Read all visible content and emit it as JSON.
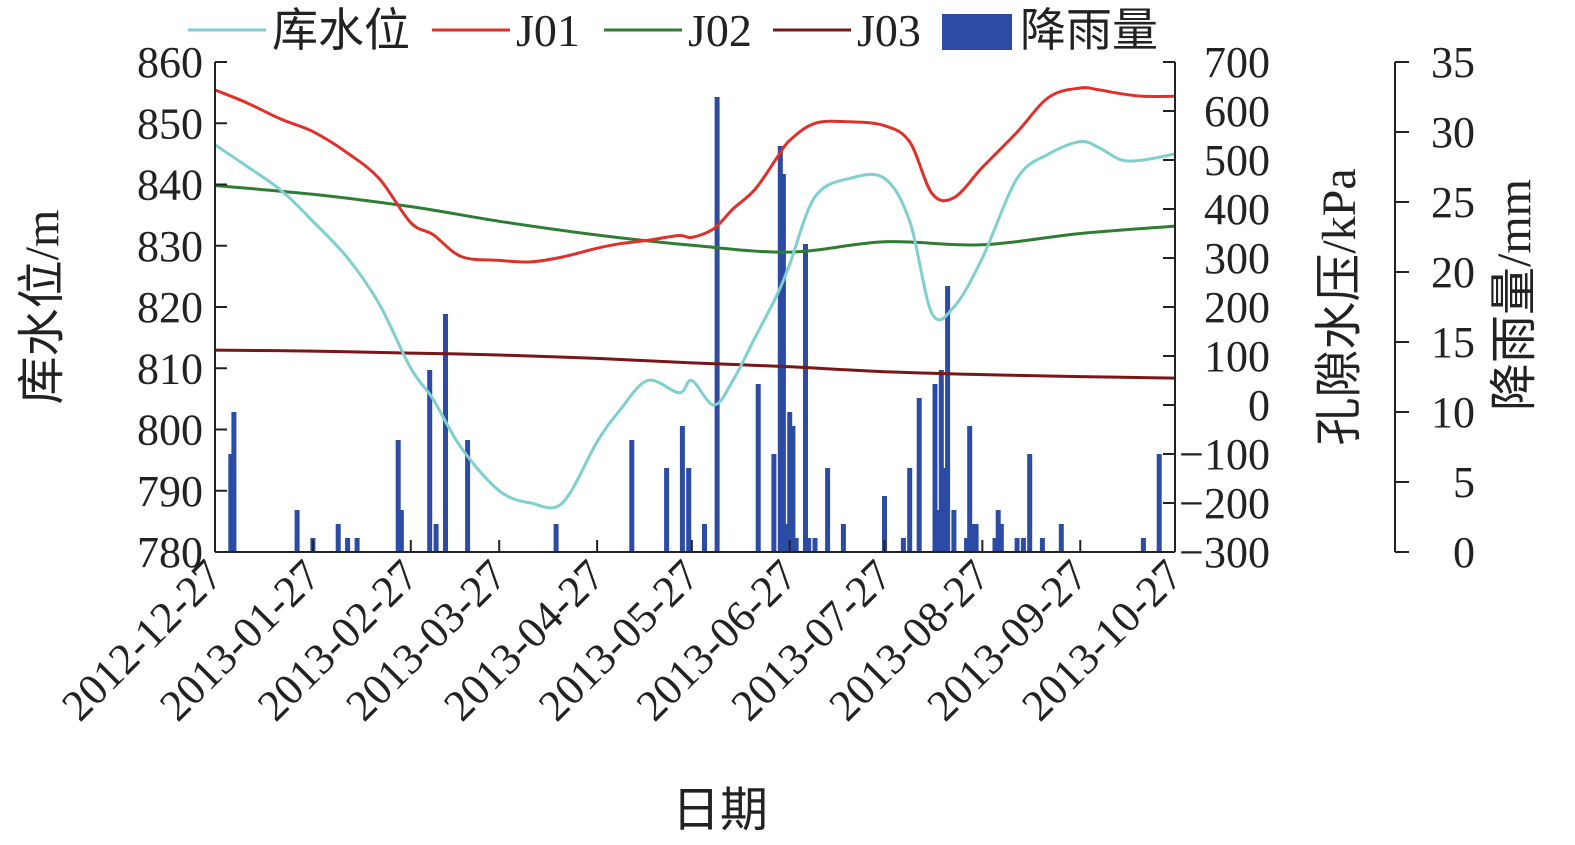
{
  "chart_data": {
    "type": "line",
    "title": "",
    "xlabel": "日期",
    "x_tick_labels": [
      "2012-12-27",
      "2013-01-27",
      "2013-02-27",
      "2013-03-27",
      "2013-04-27",
      "2013-05-27",
      "2013-06-27",
      "2013-07-27",
      "2013-08-27",
      "2013-09-27",
      "2013-10-27"
    ],
    "x_range": [
      "2012-12-27",
      "2013-10-27"
    ],
    "axes": {
      "left": {
        "label": "库水位/m",
        "ylim": [
          780,
          860
        ],
        "ticks": [
          "860",
          "850",
          "840",
          "830",
          "820",
          "810",
          "800",
          "790",
          "780"
        ]
      },
      "right1": {
        "label": "孔隙水压/kPa",
        "ylim": [
          -300,
          700
        ],
        "ticks": [
          "700",
          "600",
          "500",
          "400",
          "300",
          "200",
          "100",
          "0",
          "−100",
          "−200",
          "−300"
        ]
      },
      "right2": {
        "label": "降雨量/mm",
        "ylim": [
          0,
          35
        ],
        "ticks": [
          "35",
          "30",
          "25",
          "20",
          "15",
          "10",
          "5",
          "0"
        ]
      }
    },
    "legend_position": "top",
    "grid": false,
    "series": [
      {
        "name": "库水位",
        "kind": "line",
        "axis": "left",
        "color": "#7fcfcf",
        "x": [
          "2012-12-27",
          "2013-01-06",
          "2013-01-17",
          "2013-01-27",
          "2013-02-07",
          "2013-02-17",
          "2013-02-27",
          "2013-03-06",
          "2013-03-15",
          "2013-03-27",
          "2013-04-06",
          "2013-04-16",
          "2013-04-27",
          "2013-05-04",
          "2013-05-13",
          "2013-05-23",
          "2013-05-27",
          "2013-06-03",
          "2013-06-09",
          "2013-06-16",
          "2013-06-23",
          "2013-06-27",
          "2013-07-05",
          "2013-07-16",
          "2013-07-27",
          "2013-08-04",
          "2013-08-11",
          "2013-08-18",
          "2013-08-27",
          "2013-09-07",
          "2013-09-17",
          "2013-09-27",
          "2013-10-03",
          "2013-10-10",
          "2013-10-17",
          "2013-10-27"
        ],
        "values": [
          846.5,
          843,
          839,
          834,
          828,
          820.5,
          810,
          805,
          797,
          790,
          788,
          788,
          798,
          803,
          808,
          806,
          808,
          804,
          808,
          815,
          822,
          827,
          838,
          841,
          841,
          834,
          819,
          820,
          828,
          841,
          845,
          847,
          846,
          844,
          844,
          845
        ]
      },
      {
        "name": "J01",
        "kind": "line",
        "axis": "right1",
        "color": "#e0302a",
        "x": [
          "2012-12-27",
          "2013-01-06",
          "2013-01-17",
          "2013-01-27",
          "2013-02-07",
          "2013-02-17",
          "2013-02-27",
          "2013-03-06",
          "2013-03-15",
          "2013-03-27",
          "2013-04-06",
          "2013-04-16",
          "2013-04-27",
          "2013-05-04",
          "2013-05-13",
          "2013-05-23",
          "2013-05-27",
          "2013-06-03",
          "2013-06-09",
          "2013-06-16",
          "2013-06-23",
          "2013-06-27",
          "2013-07-05",
          "2013-07-16",
          "2013-07-27",
          "2013-08-04",
          "2013-08-11",
          "2013-08-18",
          "2013-08-27",
          "2013-09-07",
          "2013-09-17",
          "2013-09-27",
          "2013-10-03",
          "2013-10-10",
          "2013-10-17",
          "2013-10-27"
        ],
        "values": [
          643,
          617,
          583,
          558,
          514,
          462,
          372,
          348,
          303,
          295,
          292,
          302,
          320,
          329,
          336,
          346,
          342,
          360,
          400,
          440,
          505,
          540,
          575,
          578,
          570,
          537,
          432,
          423,
          485,
          557,
          628,
          647,
          643,
          635,
          630,
          630
        ]
      },
      {
        "name": "J02",
        "kind": "line",
        "axis": "right1",
        "color": "#2f7d32",
        "x": [
          "2012-12-27",
          "2013-01-27",
          "2013-02-27",
          "2013-03-27",
          "2013-04-27",
          "2013-05-27",
          "2013-06-27",
          "2013-07-27",
          "2013-08-27",
          "2013-09-27",
          "2013-10-27"
        ],
        "values": [
          448,
          430,
          405,
          375,
          347,
          326,
          312,
          333,
          327,
          350,
          365
        ]
      },
      {
        "name": "J03",
        "kind": "line",
        "axis": "right1",
        "color": "#7a1518",
        "x": [
          "2012-12-27",
          "2013-01-27",
          "2013-02-27",
          "2013-03-27",
          "2013-04-27",
          "2013-05-27",
          "2013-06-27",
          "2013-07-27",
          "2013-08-27",
          "2013-09-27",
          "2013-10-27"
        ],
        "values": [
          112,
          110,
          106,
          102,
          95,
          86,
          78,
          68,
          62,
          58,
          55
        ]
      },
      {
        "name": "降雨量",
        "kind": "bar",
        "axis": "right2",
        "color": "#2b4ba5",
        "x": [
          "2013-01-01",
          "2013-01-02",
          "2013-01-22",
          "2013-01-27",
          "2013-02-04",
          "2013-02-07",
          "2013-02-10",
          "2013-02-23",
          "2013-02-24",
          "2013-03-05",
          "2013-03-07",
          "2013-03-10",
          "2013-03-17",
          "2013-04-14",
          "2013-05-08",
          "2013-05-19",
          "2013-05-24",
          "2013-05-26",
          "2013-05-31",
          "2013-06-04",
          "2013-06-17",
          "2013-06-22",
          "2013-06-24",
          "2013-06-25",
          "2013-06-26",
          "2013-06-27",
          "2013-06-28",
          "2013-06-29",
          "2013-07-02",
          "2013-07-03",
          "2013-07-05",
          "2013-07-09",
          "2013-07-14",
          "2013-07-27",
          "2013-08-02",
          "2013-08-04",
          "2013-08-07",
          "2013-08-12",
          "2013-08-13",
          "2013-08-14",
          "2013-08-15",
          "2013-08-16",
          "2013-08-18",
          "2013-08-22",
          "2013-08-23",
          "2013-08-24",
          "2013-08-25",
          "2013-08-31",
          "2013-09-01",
          "2013-09-02",
          "2013-09-07",
          "2013-09-09",
          "2013-09-11",
          "2013-09-15",
          "2013-09-21",
          "2013-10-17",
          "2013-10-22"
        ],
        "values": [
          7,
          10,
          3,
          1,
          2,
          1,
          1,
          8,
          3,
          13,
          2,
          17,
          8,
          2,
          8,
          6,
          9,
          6,
          2,
          32.5,
          12,
          7,
          29,
          27,
          2,
          10,
          9,
          1,
          22,
          1,
          1,
          6,
          2,
          4,
          1,
          6,
          11,
          12,
          3,
          13,
          6,
          19,
          3,
          1,
          9,
          2,
          2,
          1,
          3,
          2,
          1,
          1,
          7,
          1,
          2,
          1,
          7
        ]
      }
    ]
  }
}
